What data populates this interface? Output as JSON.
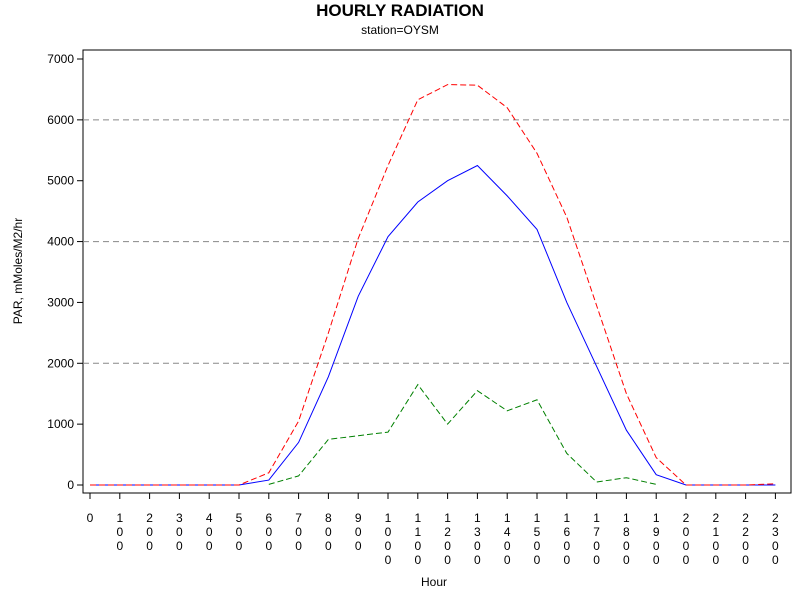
{
  "chart_data": {
    "type": "line",
    "title": "HOURLY RADIATION",
    "subtitle": "station=OYSM",
    "xlabel": "Hour",
    "ylabel": "PAR, mMoles/M2/hr",
    "ylim": [
      0,
      7000
    ],
    "yticks": [
      0,
      1000,
      2000,
      3000,
      4000,
      5000,
      6000,
      7000
    ],
    "gridlines_y": [
      2000,
      4000,
      6000
    ],
    "grid": "horizontal dashed at 2000, 4000, 6000",
    "x": [
      "0",
      "100",
      "200",
      "300",
      "400",
      "500",
      "600",
      "700",
      "800",
      "900",
      "1000",
      "1100",
      "1200",
      "1300",
      "1400",
      "1500",
      "1600",
      "1700",
      "1800",
      "1900",
      "2000",
      "2100",
      "2200",
      "2300"
    ],
    "series": [
      {
        "color": "#0000ff",
        "style": "solid",
        "values": [
          0,
          0,
          0,
          0,
          0,
          0,
          80,
          700,
          1780,
          3100,
          4080,
          4650,
          5000,
          5250,
          4750,
          4200,
          3000,
          1950,
          900,
          170,
          0,
          0,
          0,
          0
        ]
      },
      {
        "color": "#ff0000",
        "style": "dashed",
        "values": [
          0,
          0,
          0,
          0,
          0,
          0,
          200,
          1050,
          2500,
          4050,
          5250,
          6330,
          6580,
          6570,
          6200,
          5450,
          4400,
          2950,
          1500,
          450,
          0,
          0,
          0,
          20
        ]
      },
      {
        "color": "#008000",
        "style": "dashed",
        "values": [
          null,
          null,
          null,
          null,
          null,
          null,
          10,
          150,
          750,
          810,
          870,
          1650,
          1000,
          1550,
          1220,
          1400,
          520,
          50,
          120,
          10,
          null,
          null,
          null,
          null
        ]
      }
    ]
  }
}
